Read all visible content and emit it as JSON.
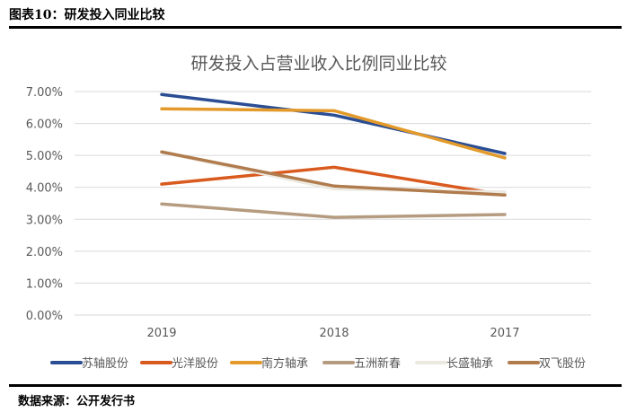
{
  "header": {
    "title": "图表10：研发投入同业比较"
  },
  "footer": {
    "source": "数据来源：公开发行书"
  },
  "chart_data": {
    "type": "line",
    "title": "研发投入占营业收入比例同业比较",
    "categories": [
      "2019",
      "2018",
      "2017"
    ],
    "ylim": [
      0,
      0.07
    ],
    "yticks": [
      "0.00%",
      "1.00%",
      "2.00%",
      "3.00%",
      "4.00%",
      "5.00%",
      "6.00%",
      "7.00%"
    ],
    "grid": true,
    "legend_position": "bottom",
    "series": [
      {
        "name": "苏轴股份",
        "color": "#2a4d94",
        "values": [
          0.0691,
          0.0626,
          0.0506
        ]
      },
      {
        "name": "光洋股份",
        "color": "#d95a1e",
        "values": [
          0.041,
          0.0463,
          0.0376
        ]
      },
      {
        "name": "南方轴承",
        "color": "#e39a2a",
        "values": [
          0.0646,
          0.064,
          0.0492
        ]
      },
      {
        "name": "五洲新春",
        "color": "#b59c80",
        "values": [
          0.0348,
          0.0306,
          0.0315
        ]
      },
      {
        "name": "长盛轴承",
        "color": "#ece9e1",
        "values": [
          0.051,
          0.0395,
          0.0385
        ]
      },
      {
        "name": "双飞股份",
        "color": "#b07c4e",
        "values": [
          0.0511,
          0.0404,
          0.0376
        ]
      }
    ]
  }
}
